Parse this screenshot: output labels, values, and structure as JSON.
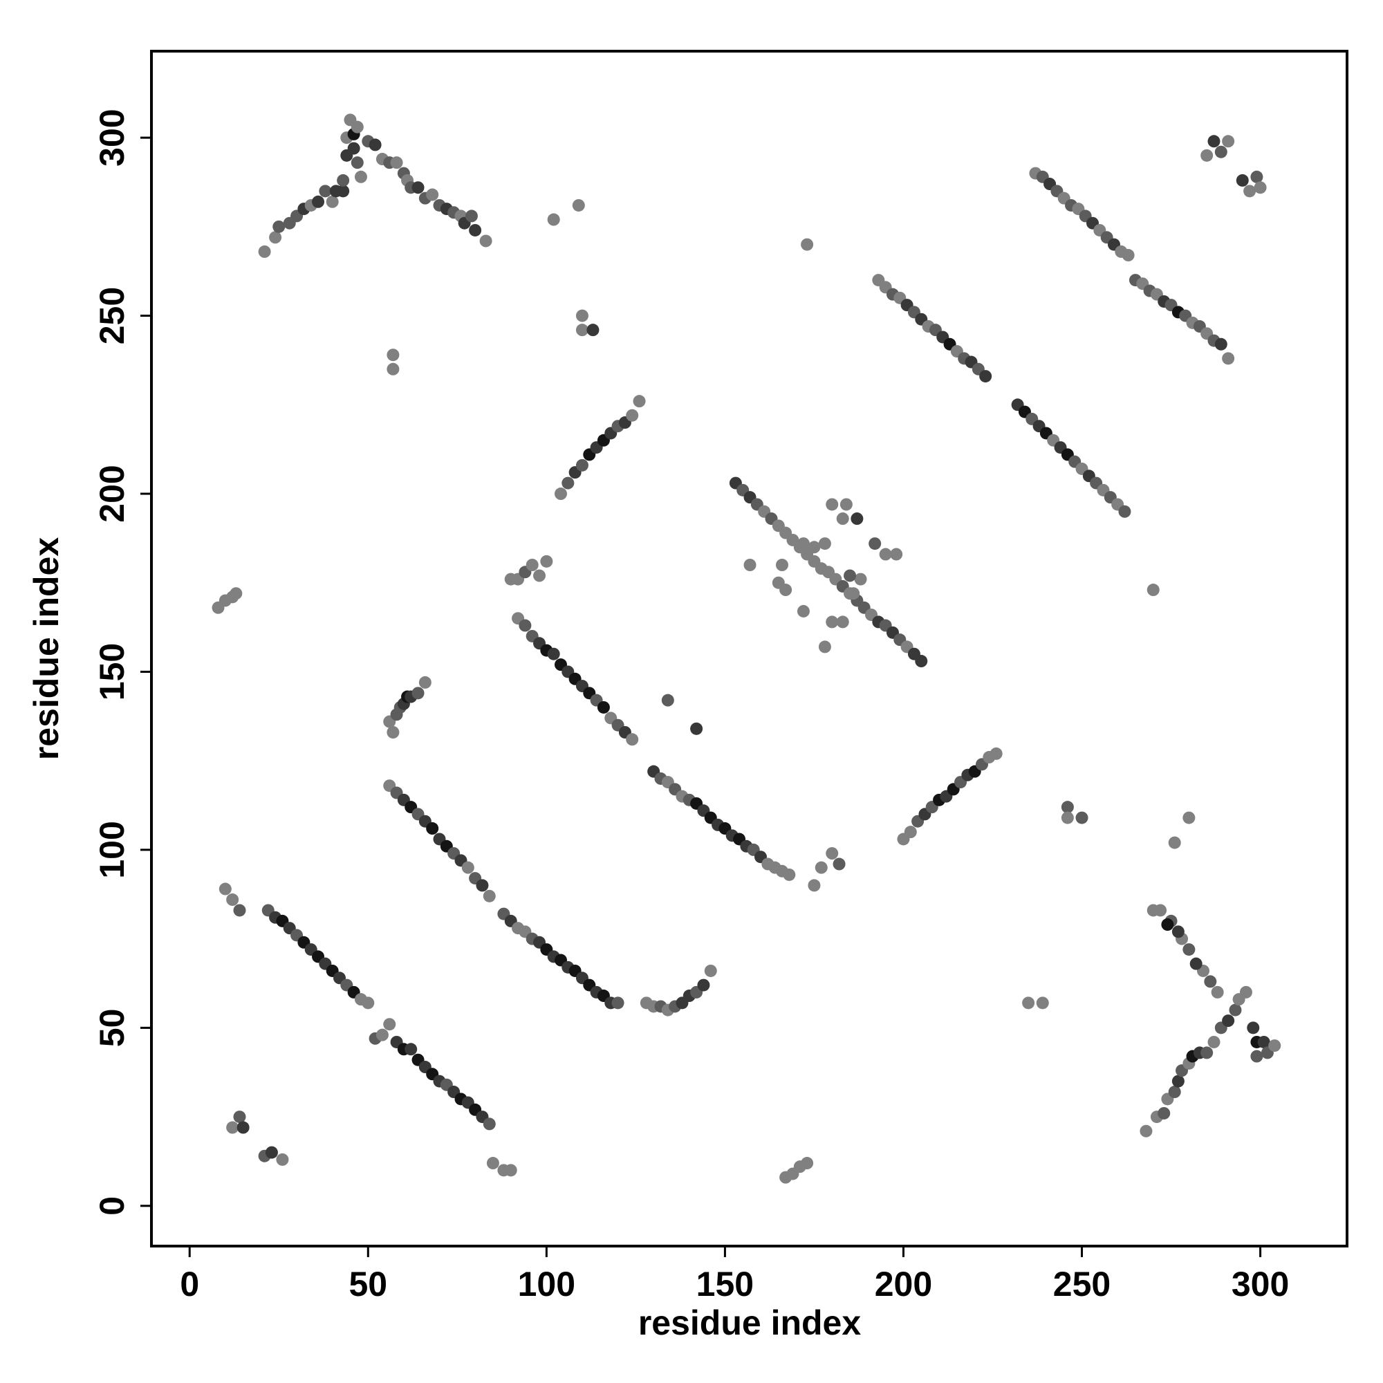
{
  "chart_data": {
    "type": "scatter",
    "xlabel": "residue index",
    "ylabel": "residue index",
    "xlim": [
      -10.7,
      324.3
    ],
    "ylim": [
      -11.3,
      324.3
    ],
    "xticks": [
      0,
      50,
      100,
      150,
      200,
      250,
      300
    ],
    "yticks": [
      0,
      50,
      100,
      150,
      200,
      250,
      300
    ],
    "grid": false,
    "x": [
      21,
      24,
      25,
      28,
      30,
      32,
      34,
      36,
      38,
      40,
      41,
      43,
      43,
      44,
      44,
      46,
      46,
      47,
      48,
      50,
      52,
      54,
      56,
      58,
      60,
      61,
      62,
      64,
      66,
      68,
      70,
      72,
      74,
      76,
      77,
      79,
      80,
      83,
      45,
      47,
      268,
      271,
      273,
      274,
      276,
      277,
      278,
      280,
      281,
      283,
      285,
      287,
      289,
      291,
      293,
      294,
      296,
      298,
      299,
      301,
      302,
      304,
      299,
      288,
      286,
      284,
      282,
      280,
      278,
      277,
      275,
      274,
      272,
      270,
      22,
      24,
      26,
      28,
      30,
      32,
      34,
      36,
      38,
      40,
      42,
      44,
      46,
      48,
      50,
      52,
      54,
      56,
      58,
      60,
      62,
      64,
      66,
      68,
      70,
      72,
      74,
      76,
      78,
      80,
      82,
      84,
      237,
      239,
      241,
      243,
      245,
      247,
      249,
      251,
      253,
      255,
      257,
      259,
      261,
      263,
      265,
      267,
      269,
      271,
      273,
      275,
      277,
      279,
      281,
      283,
      285,
      287,
      289,
      291,
      193,
      195,
      197,
      199,
      201,
      203,
      205,
      207,
      209,
      211,
      213,
      215,
      217,
      219,
      221,
      223,
      232,
      234,
      236,
      238,
      240,
      242,
      244,
      246,
      248,
      250,
      252,
      254,
      256,
      258,
      260,
      262,
      56,
      58,
      60,
      62,
      64,
      66,
      68,
      70,
      72,
      74,
      76,
      78,
      80,
      82,
      84,
      88,
      90,
      92,
      94,
      96,
      98,
      100,
      102,
      104,
      106,
      108,
      110,
      112,
      114,
      116,
      118,
      120,
      56,
      57,
      58,
      59,
      60,
      61,
      62,
      64,
      66,
      128,
      130,
      132,
      134,
      136,
      138,
      140,
      142,
      144,
      146,
      90,
      92,
      94,
      96,
      98,
      100,
      92,
      94,
      96,
      98,
      100,
      102,
      104,
      106,
      108,
      110,
      112,
      114,
      116,
      118,
      120,
      122,
      124,
      130,
      132,
      134,
      136,
      138,
      140,
      142,
      144,
      146,
      148,
      150,
      152,
      154,
      156,
      158,
      160,
      162,
      164,
      166,
      168,
      153,
      155,
      157,
      159,
      161,
      163,
      165,
      167,
      169,
      171,
      173,
      175,
      177,
      179,
      181,
      183,
      185,
      187,
      189,
      191,
      193,
      195,
      197,
      199,
      201,
      203,
      205,
      165,
      167,
      166,
      172,
      175,
      178,
      180,
      184,
      183,
      187,
      192,
      195,
      198,
      188,
      185,
      186,
      180,
      183,
      172,
      178,
      157,
      104,
      106,
      108,
      110,
      112,
      114,
      116,
      118,
      120,
      122,
      124,
      126,
      200,
      202,
      204,
      206,
      208,
      210,
      212,
      214,
      216,
      218,
      220,
      222,
      224,
      226,
      8,
      10,
      12,
      13,
      10,
      12,
      14,
      12,
      14,
      15,
      21,
      23,
      26,
      85,
      88,
      90,
      167,
      169,
      171,
      173,
      175,
      177,
      180,
      182,
      57,
      57,
      102,
      109,
      110,
      110,
      113,
      173,
      270,
      246,
      246,
      250,
      276,
      280,
      235,
      239,
      134,
      142,
      285,
      287,
      289,
      291,
      295,
      297,
      299,
      300
    ],
    "values": [
      268,
      272,
      275,
      276,
      278,
      280,
      281,
      282,
      285,
      282,
      285,
      285,
      288,
      295,
      300,
      301,
      297,
      293,
      289,
      299,
      298,
      294,
      293,
      293,
      290,
      288,
      286,
      286,
      283,
      284,
      281,
      280,
      279,
      278,
      276,
      278,
      274,
      271,
      305,
      303,
      21,
      25,
      26,
      30,
      32,
      35,
      38,
      40,
      42,
      43,
      43,
      46,
      50,
      52,
      55,
      58,
      60,
      50,
      46,
      46,
      43,
      45,
      42,
      60,
      63,
      66,
      68,
      72,
      75,
      77,
      80,
      79,
      83,
      83,
      83,
      81,
      80,
      78,
      76,
      74,
      72,
      70,
      68,
      66,
      64,
      62,
      60,
      58,
      57,
      47,
      48,
      51,
      46,
      44,
      44,
      41,
      39,
      37,
      35,
      34,
      32,
      30,
      29,
      27,
      25,
      23,
      290,
      289,
      287,
      285,
      283,
      281,
      280,
      278,
      276,
      274,
      272,
      270,
      268,
      267,
      260,
      259,
      257,
      256,
      254,
      253,
      251,
      250,
      248,
      247,
      245,
      243,
      242,
      238,
      260,
      258,
      256,
      255,
      253,
      251,
      249,
      247,
      246,
      244,
      242,
      240,
      238,
      237,
      235,
      233,
      225,
      223,
      221,
      219,
      217,
      215,
      213,
      211,
      209,
      207,
      205,
      203,
      201,
      199,
      197,
      195,
      118,
      116,
      114,
      112,
      110,
      108,
      106,
      103,
      101,
      99,
      97,
      95,
      92,
      90,
      87,
      82,
      80,
      78,
      77,
      75,
      74,
      72,
      70,
      69,
      67,
      66,
      64,
      62,
      60,
      59,
      57,
      57,
      136,
      133,
      138,
      140,
      141,
      143,
      143,
      144,
      147,
      57,
      56,
      56,
      55,
      56,
      57,
      59,
      60,
      62,
      66,
      176,
      176,
      178,
      180,
      177,
      181,
      165,
      163,
      160,
      158,
      156,
      155,
      152,
      150,
      148,
      146,
      144,
      142,
      140,
      137,
      135,
      133,
      131,
      122,
      120,
      119,
      117,
      115,
      114,
      113,
      111,
      109,
      107,
      106,
      104,
      103,
      101,
      100,
      98,
      96,
      95,
      94,
      93,
      203,
      201,
      199,
      197,
      195,
      193,
      191,
      189,
      187,
      185,
      183,
      181,
      179,
      178,
      176,
      174,
      172,
      170,
      168,
      166,
      164,
      163,
      161,
      159,
      157,
      155,
      153,
      175,
      173,
      180,
      186,
      185,
      186,
      197,
      197,
      193,
      193,
      186,
      183,
      183,
      176,
      177,
      172,
      164,
      164,
      167,
      157,
      180,
      200,
      203,
      206,
      208,
      211,
      213,
      215,
      217,
      219,
      220,
      222,
      226,
      103,
      105,
      108,
      110,
      112,
      114,
      115,
      117,
      119,
      121,
      122,
      124,
      126,
      127,
      168,
      170,
      171,
      172,
      89,
      86,
      83,
      22,
      25,
      22,
      14,
      15,
      13,
      12,
      10,
      10,
      8,
      9,
      11,
      12,
      90,
      95,
      99,
      96,
      235,
      239,
      277,
      281,
      250,
      246,
      246,
      270,
      173,
      112,
      109,
      109,
      102,
      109,
      57,
      57,
      142,
      134,
      295,
      299,
      296,
      299,
      288,
      285,
      289,
      286
    ],
    "colors": [
      "#808080",
      "#808080",
      "#5c5c5c",
      "#5c5c5c",
      "#5c5c5c",
      "#383838",
      "#808080",
      "#383838",
      "#5c5c5c",
      "#808080",
      "#383838",
      "#383838",
      "#5c5c5c",
      "#383838",
      "#808080",
      "#141414",
      "#383838",
      "#5c5c5c",
      "#808080",
      "#5c5c5c",
      "#383838",
      "#808080",
      "#5c5c5c",
      "#808080",
      "#5c5c5c",
      "#808080",
      "#5c5c5c",
      "#383838",
      "#5c5c5c",
      "#808080",
      "#5c5c5c",
      "#383838",
      "#5c5c5c",
      "#808080",
      "#383838",
      "#5c5c5c",
      "#383838",
      "#808080",
      "#808080",
      "#808080",
      "#808080",
      "#808080",
      "#5c5c5c",
      "#808080",
      "#5c5c5c",
      "#383838",
      "#5c5c5c",
      "#808080",
      "#141414",
      "#383838",
      "#5c5c5c",
      "#808080",
      "#5c5c5c",
      "#383838",
      "#5c5c5c",
      "#808080",
      "#808080",
      "#383838",
      "#141414",
      "#383838",
      "#5c5c5c",
      "#808080",
      "#5c5c5c",
      "#808080",
      "#5c5c5c",
      "#808080",
      "#383838",
      "#5c5c5c",
      "#808080",
      "#383838",
      "#5c5c5c",
      "#141414",
      "#808080",
      "#808080",
      "#5c5c5c",
      "#383838",
      "#141414",
      "#383838",
      "#5c5c5c",
      "#141414",
      "#383838",
      "#141414",
      "#383838",
      "#141414",
      "#383838",
      "#5c5c5c",
      "#141414",
      "#808080",
      "#808080",
      "#5c5c5c",
      "#808080",
      "#808080",
      "#383838",
      "#141414",
      "#383838",
      "#141414",
      "#383838",
      "#141414",
      "#383838",
      "#5c5c5c",
      "#383838",
      "#141414",
      "#383838",
      "#141414",
      "#383838",
      "#5c5c5c",
      "#808080",
      "#5c5c5c",
      "#383838",
      "#5c5c5c",
      "#808080",
      "#5c5c5c",
      "#808080",
      "#5c5c5c",
      "#383838",
      "#808080",
      "#5c5c5c",
      "#383838",
      "#808080",
      "#808080",
      "#5c5c5c",
      "#808080",
      "#5c5c5c",
      "#808080",
      "#383838",
      "#5c5c5c",
      "#141414",
      "#5c5c5c",
      "#808080",
      "#5c5c5c",
      "#808080",
      "#5c5c5c",
      "#383838",
      "#808080",
      "#808080",
      "#808080",
      "#5c5c5c",
      "#808080",
      "#383838",
      "#5c5c5c",
      "#383838",
      "#808080",
      "#5c5c5c",
      "#383838",
      "#141414",
      "#808080",
      "#5c5c5c",
      "#383838",
      "#5c5c5c",
      "#383838",
      "#383838",
      "#141414",
      "#5c5c5c",
      "#383838",
      "#141414",
      "#808080",
      "#383838",
      "#141414",
      "#5c5c5c",
      "#808080",
      "#383838",
      "#5c5c5c",
      "#808080",
      "#5c5c5c",
      "#808080",
      "#5c5c5c",
      "#808080",
      "#5c5c5c",
      "#383838",
      "#141414",
      "#5c5c5c",
      "#383838",
      "#141414",
      "#383838",
      "#141414",
      "#5c5c5c",
      "#383838",
      "#808080",
      "#5c5c5c",
      "#383838",
      "#808080",
      "#5c5c5c",
      "#383838",
      "#808080",
      "#808080",
      "#5c5c5c",
      "#383838",
      "#141414",
      "#383838",
      "#141414",
      "#383838",
      "#141414",
      "#383838",
      "#141414",
      "#383838",
      "#141414",
      "#383838",
      "#5c5c5c",
      "#808080",
      "#808080",
      "#5c5c5c",
      "#5c5c5c",
      "#383838",
      "#141414",
      "#383838",
      "#5c5c5c",
      "#808080",
      "#808080",
      "#808080",
      "#5c5c5c",
      "#808080",
      "#5c5c5c",
      "#383838",
      "#383838",
      "#5c5c5c",
      "#383838",
      "#808080",
      "#808080",
      "#808080",
      "#5c5c5c",
      "#808080",
      "#808080",
      "#808080",
      "#808080",
      "#5c5c5c",
      "#5c5c5c",
      "#383838",
      "#141414",
      "#383838",
      "#141414",
      "#383838",
      "#141414",
      "#383838",
      "#141414",
      "#5c5c5c",
      "#141414",
      "#808080",
      "#5c5c5c",
      "#383838",
      "#808080",
      "#383838",
      "#5c5c5c",
      "#808080",
      "#5c5c5c",
      "#808080",
      "#5c5c5c",
      "#141414",
      "#383838",
      "#141414",
      "#383838",
      "#141414",
      "#383838",
      "#141414",
      "#383838",
      "#5c5c5c",
      "#383838",
      "#808080",
      "#808080",
      "#808080",
      "#808080",
      "#383838",
      "#5c5c5c",
      "#383838",
      "#5c5c5c",
      "#808080",
      "#5c5c5c",
      "#808080",
      "#808080",
      "#808080",
      "#808080",
      "#808080",
      "#808080",
      "#808080",
      "#808080",
      "#808080",
      "#5c5c5c",
      "#808080",
      "#5c5c5c",
      "#5c5c5c",
      "#808080",
      "#383838",
      "#5c5c5c",
      "#383838",
      "#5c5c5c",
      "#808080",
      "#383838",
      "#383838",
      "#808080",
      "#808080",
      "#808080",
      "#808080",
      "#808080",
      "#808080",
      "#808080",
      "#808080",
      "#808080",
      "#383838",
      "#5c5c5c",
      "#808080",
      "#808080",
      "#808080",
      "#5c5c5c",
      "#808080",
      "#808080",
      "#808080",
      "#808080",
      "#808080",
      "#808080",
      "#808080",
      "#5c5c5c",
      "#383838",
      "#5c5c5c",
      "#141414",
      "#383838",
      "#141414",
      "#383838",
      "#5c5c5c",
      "#383838",
      "#808080",
      "#808080",
      "#808080",
      "#808080",
      "#5c5c5c",
      "#383838",
      "#5c5c5c",
      "#141414",
      "#383838",
      "#141414",
      "#5c5c5c",
      "#383838",
      "#141414",
      "#5c5c5c",
      "#808080",
      "#808080",
      "#808080",
      "#808080",
      "#808080",
      "#808080",
      "#808080",
      "#808080",
      "#5c5c5c",
      "#808080",
      "#5c5c5c",
      "#383838",
      "#5c5c5c",
      "#383838",
      "#808080",
      "#808080",
      "#808080",
      "#808080",
      "#808080",
      "#808080",
      "#808080",
      "#808080",
      "#808080",
      "#808080",
      "#808080",
      "#5c5c5c",
      "#808080",
      "#808080",
      "#808080",
      "#808080",
      "#808080",
      "#808080",
      "#383838",
      "#808080",
      "#808080",
      "#5c5c5c",
      "#808080",
      "#5c5c5c",
      "#808080",
      "#808080",
      "#808080",
      "#808080",
      "#5c5c5c",
      "#383838",
      "#808080",
      "#383838",
      "#5c5c5c",
      "#808080",
      "#383838",
      "#808080",
      "#5c5c5c",
      "#808080"
    ]
  }
}
